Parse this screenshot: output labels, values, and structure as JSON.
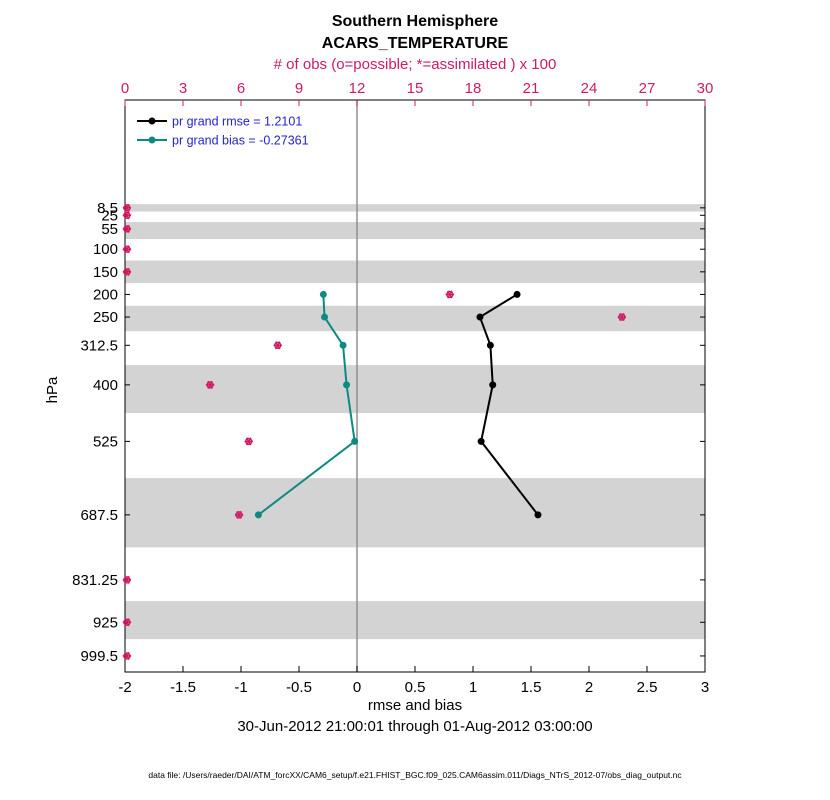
{
  "title": {
    "line1": "Southern Hemisphere",
    "line2": "ACARS_TEMPERATURE"
  },
  "top_axis": {
    "label": "# of obs (o=possible; *=assimilated ) x 100",
    "color": "#d01b64",
    "range": [
      0,
      30
    ],
    "ticks": [
      0,
      3,
      6,
      9,
      12,
      15,
      18,
      21,
      24,
      27,
      30
    ]
  },
  "bottom_axis": {
    "label": "rmse and bias",
    "range": [
      -2,
      3
    ],
    "ticks": [
      -2,
      -1.5,
      -1,
      -0.5,
      0,
      0.5,
      1,
      1.5,
      2,
      2.5,
      3
    ]
  },
  "left_axis": {
    "label": "hPa",
    "levels": [
      8.5,
      25,
      55,
      100,
      150,
      200,
      250,
      312.5,
      400,
      525,
      687.5,
      831.25,
      925,
      999.5
    ],
    "range": [
      -230,
      1035
    ]
  },
  "legend": {
    "text_color": "#2424cc",
    "items": [
      {
        "label": "pr grand rmse = 1.2101",
        "color": "#000000"
      },
      {
        "label": "pr grand bias = -0.27361",
        "color": "#0e8a80"
      }
    ]
  },
  "footer": {
    "date_range": "30-Jun-2012 21:00:01 through 01-Aug-2012 03:00:00",
    "data_file": "data file: /Users/raeder/DAI/ATM_forcXX/CAM6_setup/f.e21.FHIST_BGC.f09_025.CAM6assim.011/Diags_NTrS_2012-07/obs_diag_output.nc"
  },
  "chart_data": {
    "type": "line",
    "orientation": "vertical-profile",
    "xlabel": "rmse and bias",
    "ylabel": "hPa",
    "xlim": [
      -2,
      3
    ],
    "obs_axis_lim": [
      0,
      30
    ],
    "profile_levels_hpa": [
      200,
      250,
      312.5,
      400,
      525,
      687.5
    ],
    "series": [
      {
        "name": "pr grand rmse",
        "color": "#000000",
        "values": [
          1.38,
          1.06,
          1.15,
          1.17,
          1.07,
          1.56
        ]
      },
      {
        "name": "pr grand bias",
        "color": "#0e8a80",
        "values": [
          -0.29,
          -0.28,
          -0.12,
          -0.09,
          -0.02,
          -0.85
        ]
      }
    ],
    "obs_counts_x100": {
      "color": "#d01b64",
      "levels_hpa": [
        8.5,
        25,
        55,
        100,
        150,
        200,
        250,
        312.5,
        400,
        525,
        687.5,
        831.25,
        925,
        999.5
      ],
      "possible": [
        0.1,
        0.1,
        0.1,
        0.1,
        0.1,
        16.8,
        25.7,
        7.9,
        4.4,
        6.4,
        5.9,
        0.1,
        0.1,
        0.1
      ],
      "assimilated": [
        0.1,
        0.1,
        0.1,
        0.1,
        0.1,
        16.8,
        25.7,
        7.9,
        4.4,
        6.4,
        5.9,
        0.1,
        0.1,
        0.1
      ]
    },
    "shaded_band_levels_hpa": [
      8.5,
      55,
      150,
      250,
      400,
      687.5,
      925
    ],
    "band_color": "#d3d3d3",
    "zero_line_color": "#909090",
    "grid": "off",
    "legend_position": "top-left-inside"
  }
}
